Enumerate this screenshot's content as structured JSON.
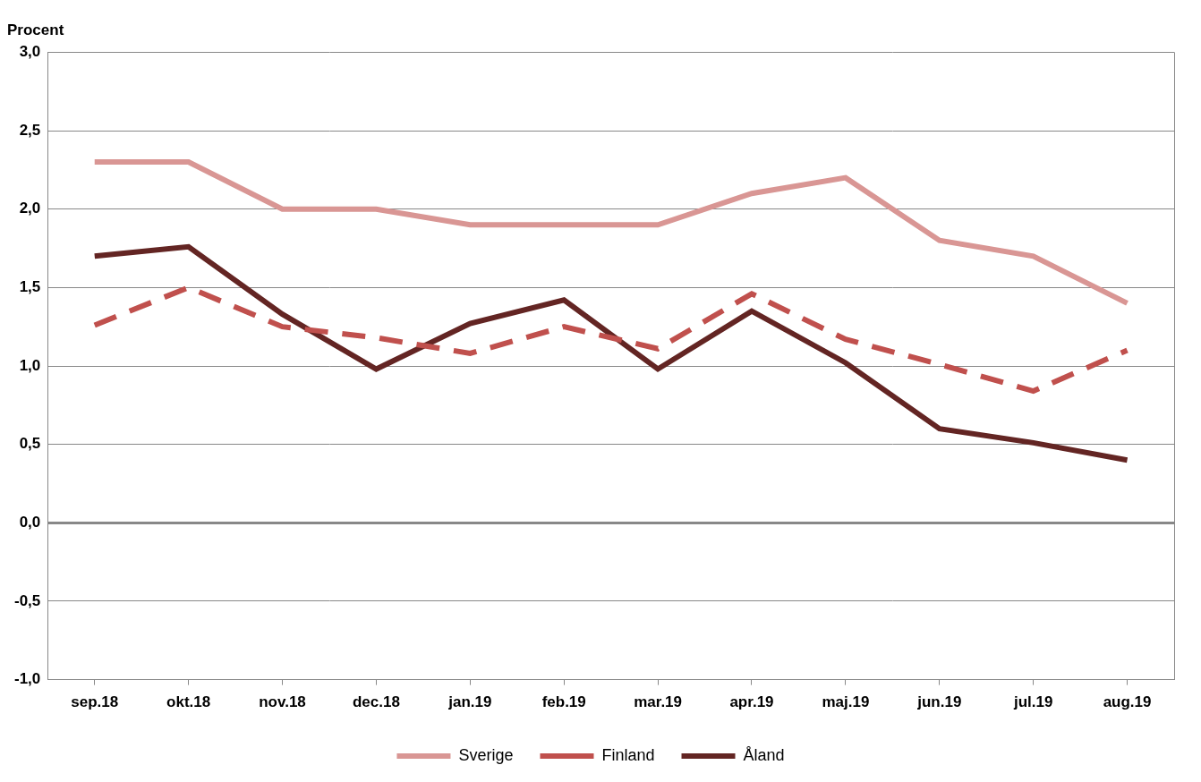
{
  "chart_data": {
    "type": "line",
    "ylabel": "Procent",
    "categories": [
      "sep.18",
      "okt.18",
      "nov.18",
      "dec.18",
      "jan.19",
      "feb.19",
      "mar.19",
      "apr.19",
      "maj.19",
      "jun.19",
      "jul.19",
      "aug.19"
    ],
    "series": [
      {
        "name": "Sverige",
        "color": "#d99694",
        "line_style": "solid",
        "values": [
          2.3,
          2.3,
          2.0,
          2.0,
          1.9,
          1.9,
          1.9,
          2.1,
          2.2,
          1.8,
          1.7,
          1.4
        ]
      },
      {
        "name": "Finland",
        "color": "#c0504d",
        "line_style": "dashed",
        "values": [
          1.26,
          1.5,
          1.25,
          1.18,
          1.08,
          1.25,
          1.11,
          1.46,
          1.17,
          1.01,
          0.84,
          1.1
        ]
      },
      {
        "name": "Åland",
        "color": "#632523",
        "line_style": "solid",
        "values": [
          1.7,
          1.76,
          1.33,
          0.98,
          1.27,
          1.42,
          0.98,
          1.35,
          1.02,
          0.6,
          0.51,
          0.4
        ]
      }
    ],
    "ylim": [
      -1.0,
      3.0
    ],
    "yticks": [
      {
        "value": -1.0,
        "label": "-1,0"
      },
      {
        "value": -0.5,
        "label": "-0,5"
      },
      {
        "value": 0,
        "label": "0,0"
      },
      {
        "value": 0.5,
        "label": "0,5"
      },
      {
        "value": 1.0,
        "label": "1,0"
      },
      {
        "value": 1.5,
        "label": "1,5"
      },
      {
        "value": 2.0,
        "label": "2,0"
      },
      {
        "value": 2.5,
        "label": "2,5"
      },
      {
        "value": 3.0,
        "label": "3,0"
      }
    ],
    "grid": true,
    "legend": "bottom"
  }
}
